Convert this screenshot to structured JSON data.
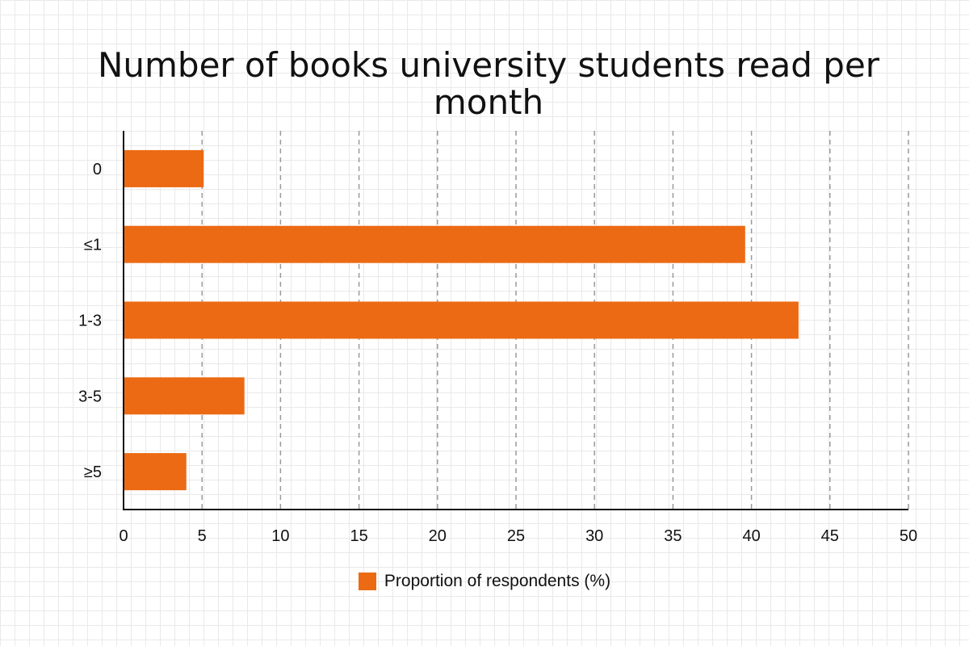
{
  "chart_data": {
    "type": "bar",
    "orientation": "horizontal",
    "title": "Number of books university students read per month",
    "categories": [
      "0",
      "≤1",
      "1-3",
      "3-5",
      "≥5"
    ],
    "series": [
      {
        "name": "Proportion of respondents (%)",
        "values": [
          5.1,
          39.6,
          43.0,
          7.7,
          4.0
        ],
        "color": "#ec6a13"
      }
    ],
    "xlim": [
      0,
      50
    ],
    "xticks": [
      "0",
      "5",
      "10",
      "15",
      "20",
      "25",
      "30",
      "35",
      "40",
      "45",
      "50"
    ],
    "grid": "vertical dashed",
    "legend": "bottom-center"
  }
}
